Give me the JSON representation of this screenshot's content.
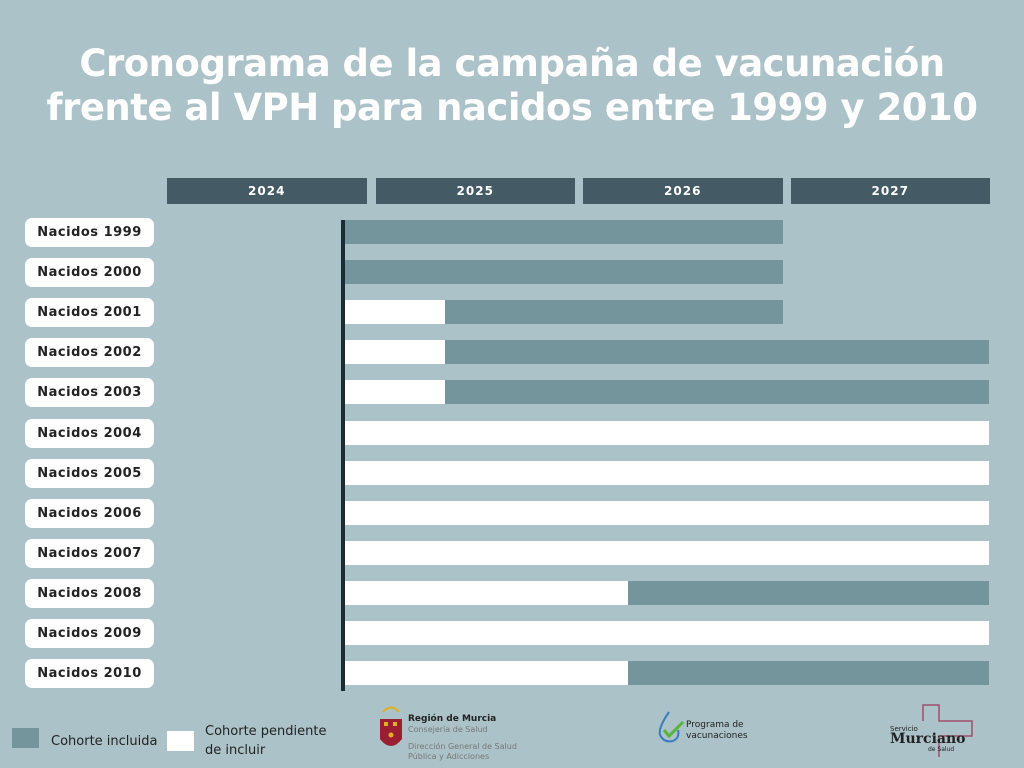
{
  "title_line1": "Cronograma de la campaña de vacunación",
  "title_line2": "frente al VPH para nacidos entre 1999 y 2010",
  "chart_data": {
    "type": "gantt",
    "title": "Cronograma de la campaña de vacunación frente al VPH para nacidos entre 1999 y 2010",
    "axis_years": [
      "2024",
      "2025",
      "2026",
      "2027"
    ],
    "xlim": [
      2024,
      2028
    ],
    "campaign_start": 2024.86,
    "colors": {
      "included": "#73959b",
      "pending": "#ffffff"
    },
    "rows": [
      {
        "label": "Nacidos 1999",
        "segments": [
          [
            2024.86,
            2026.97,
            "included"
          ]
        ]
      },
      {
        "label": "Nacidos 2000",
        "segments": [
          [
            2024.86,
            2026.97,
            "included"
          ]
        ]
      },
      {
        "label": "Nacidos 2001",
        "segments": [
          [
            2024.86,
            2025.34,
            "pending"
          ],
          [
            2025.34,
            2026.97,
            "included"
          ]
        ]
      },
      {
        "label": "Nacidos 2002",
        "segments": [
          [
            2024.86,
            2025.34,
            "pending"
          ],
          [
            2025.34,
            2028,
            "included"
          ]
        ]
      },
      {
        "label": "Nacidos 2003",
        "segments": [
          [
            2024.86,
            2025.34,
            "pending"
          ],
          [
            2025.34,
            2028,
            "included"
          ]
        ]
      },
      {
        "label": "Nacidos 2004",
        "segments": [
          [
            2024.86,
            2028,
            "pending"
          ]
        ]
      },
      {
        "label": "Nacidos 2005",
        "segments": [
          [
            2024.86,
            2028,
            "pending"
          ]
        ]
      },
      {
        "label": "Nacidos 2006",
        "segments": [
          [
            2024.86,
            2028,
            "pending"
          ]
        ]
      },
      {
        "label": "Nacidos 2007",
        "segments": [
          [
            2024.86,
            2028,
            "pending"
          ]
        ]
      },
      {
        "label": "Nacidos 2008",
        "segments": [
          [
            2024.86,
            2026.22,
            "pending"
          ],
          [
            2026.22,
            2028,
            "included"
          ]
        ]
      },
      {
        "label": "Nacidos 2009",
        "segments": [
          [
            2024.86,
            2028,
            "pending"
          ]
        ]
      },
      {
        "label": "Nacidos 2010",
        "segments": [
          [
            2024.86,
            2026.22,
            "pending"
          ],
          [
            2026.22,
            2028,
            "included"
          ]
        ]
      }
    ],
    "legend": [
      {
        "label": "Cohorte incluida",
        "status": "included"
      },
      {
        "label": "Cohorte pendiente de incluir",
        "status": "pending"
      }
    ]
  },
  "logos": {
    "murcia_name": "Región de Murcia",
    "murcia_sub": "Consejería de Salud",
    "murcia_dir1": "Dirección General de Salud",
    "murcia_dir2": "Pública y Adicciones",
    "programa1": "Programa de",
    "programa2": "vacunaciones",
    "sms1": "Servicio",
    "sms2": "Murciano",
    "sms3": "de Salud"
  }
}
